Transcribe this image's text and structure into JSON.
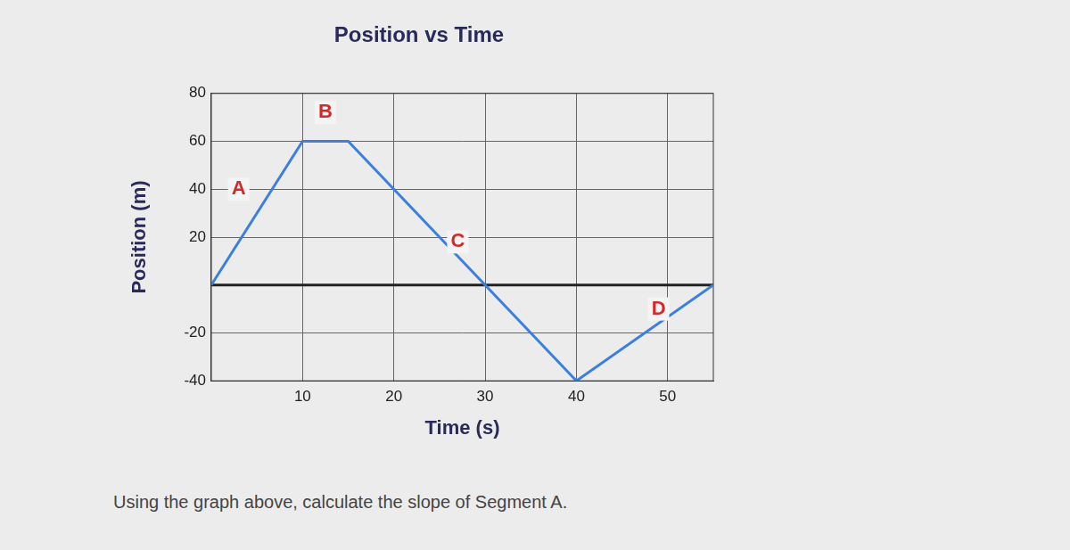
{
  "chart_data": {
    "type": "line",
    "title": "Position vs Time",
    "x_label": "Time (s)",
    "y_label": "Position (m)",
    "x": [
      0,
      10,
      15,
      40,
      55
    ],
    "series": [
      {
        "name": "Position",
        "color": "#3b7fe0",
        "values": [
          0,
          60,
          60,
          -40,
          0
        ]
      }
    ],
    "xlim": [
      0,
      55
    ],
    "xticks": [
      10,
      20,
      30,
      40,
      50
    ],
    "ylim": [
      -40,
      80
    ],
    "yticks": [
      -40,
      -20,
      20,
      40,
      60,
      80
    ],
    "grid": true,
    "annotations": [
      {
        "text": "A",
        "x": 3,
        "y": 40
      },
      {
        "text": "B",
        "x": 12.5,
        "y": 72
      },
      {
        "text": "C",
        "x": 27,
        "y": 18
      },
      {
        "text": "D",
        "x": 49,
        "y": -10
      }
    ],
    "question": "Using the graph above, calculate the slope of Segment A."
  }
}
